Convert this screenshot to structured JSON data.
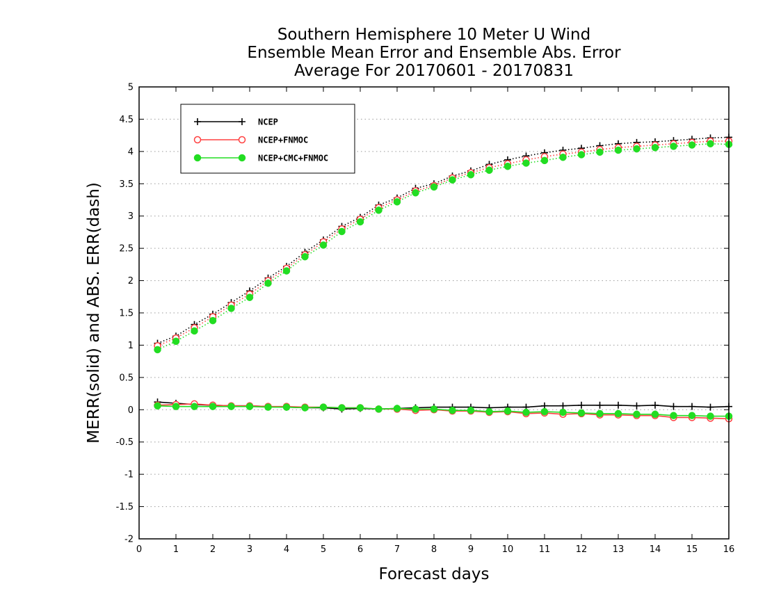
{
  "chart_data": {
    "type": "line",
    "title": [
      "Southern Hemisphere 10 Meter U Wind",
      "Ensemble Mean Error and Ensemble Abs. Error",
      "Average For 20170601 - 20170831"
    ],
    "xlabel": "Forecast days",
    "ylabel": "MERR(solid) and ABS. ERR(dash)",
    "xlim": [
      0,
      16
    ],
    "ylim": [
      -2,
      5
    ],
    "xticks": [
      "0",
      "1",
      "2",
      "3",
      "4",
      "5",
      "6",
      "7",
      "8",
      "9",
      "10",
      "11",
      "12",
      "13",
      "14",
      "15",
      "16"
    ],
    "yticks": [
      "5",
      "4.5",
      "4",
      "3.5",
      "3",
      "2.5",
      "2",
      "1.5",
      "1",
      "0.5",
      "0",
      "-0.5",
      "-1",
      "-1.5",
      "-2"
    ],
    "grid": true,
    "legend_position": "top-left",
    "x": [
      0.5,
      1,
      1.5,
      2,
      2.5,
      3,
      3.5,
      4,
      4.5,
      5,
      5.5,
      6,
      6.5,
      7,
      7.5,
      8,
      8.5,
      9,
      9.5,
      10,
      10.5,
      11,
      11.5,
      12,
      12.5,
      13,
      13.5,
      14,
      14.5,
      15,
      15.5,
      16
    ],
    "series": [
      {
        "name": "NCEP",
        "color": "#000000",
        "marker": "plus",
        "abs_err": [
          1.03,
          1.14,
          1.32,
          1.48,
          1.66,
          1.84,
          2.04,
          2.22,
          2.44,
          2.63,
          2.84,
          2.98,
          3.17,
          3.28,
          3.43,
          3.5,
          3.62,
          3.7,
          3.8,
          3.87,
          3.93,
          3.98,
          4.02,
          4.05,
          4.09,
          4.12,
          4.14,
          4.15,
          4.17,
          4.19,
          4.21,
          4.22
        ],
        "mean_err": [
          0.12,
          0.1,
          0.08,
          0.07,
          0.06,
          0.06,
          0.05,
          0.04,
          0.03,
          0.03,
          0.01,
          0.02,
          0.01,
          0.02,
          0.03,
          0.04,
          0.04,
          0.04,
          0.03,
          0.04,
          0.04,
          0.06,
          0.06,
          0.07,
          0.07,
          0.07,
          0.06,
          0.07,
          0.05,
          0.05,
          0.04,
          0.05
        ]
      },
      {
        "name": "NCEP+FNMOC",
        "color": "#ff4040",
        "marker": "open-circle",
        "abs_err": [
          0.99,
          1.11,
          1.27,
          1.44,
          1.62,
          1.79,
          2.0,
          2.19,
          2.4,
          2.6,
          2.8,
          2.95,
          3.13,
          3.25,
          3.39,
          3.47,
          3.59,
          3.67,
          3.75,
          3.81,
          3.87,
          3.92,
          3.96,
          3.99,
          4.03,
          4.06,
          4.08,
          4.1,
          4.12,
          4.14,
          4.16,
          4.16
        ],
        "mean_err": [
          0.07,
          0.08,
          0.09,
          0.07,
          0.06,
          0.06,
          0.05,
          0.05,
          0.04,
          0.04,
          0.03,
          0.03,
          0.01,
          0.01,
          -0.01,
          0.0,
          -0.02,
          -0.02,
          -0.04,
          -0.03,
          -0.06,
          -0.05,
          -0.07,
          -0.06,
          -0.08,
          -0.08,
          -0.09,
          -0.09,
          -0.12,
          -0.12,
          -0.13,
          -0.14
        ]
      },
      {
        "name": "NCEP+CMC+FNMOC",
        "color": "#22dd22",
        "marker": "filled-circle",
        "abs_err": [
          0.93,
          1.06,
          1.22,
          1.38,
          1.57,
          1.74,
          1.96,
          2.15,
          2.37,
          2.55,
          2.76,
          2.91,
          3.09,
          3.22,
          3.36,
          3.45,
          3.56,
          3.64,
          3.71,
          3.77,
          3.82,
          3.86,
          3.91,
          3.95,
          3.99,
          4.02,
          4.04,
          4.06,
          4.08,
          4.1,
          4.12,
          4.11
        ],
        "mean_err": [
          0.06,
          0.05,
          0.05,
          0.05,
          0.05,
          0.05,
          0.04,
          0.04,
          0.03,
          0.04,
          0.03,
          0.03,
          0.01,
          0.02,
          0.01,
          0.01,
          -0.01,
          -0.01,
          -0.03,
          -0.02,
          -0.04,
          -0.03,
          -0.04,
          -0.05,
          -0.06,
          -0.06,
          -0.07,
          -0.07,
          -0.09,
          -0.09,
          -0.1,
          -0.1
        ]
      }
    ]
  }
}
